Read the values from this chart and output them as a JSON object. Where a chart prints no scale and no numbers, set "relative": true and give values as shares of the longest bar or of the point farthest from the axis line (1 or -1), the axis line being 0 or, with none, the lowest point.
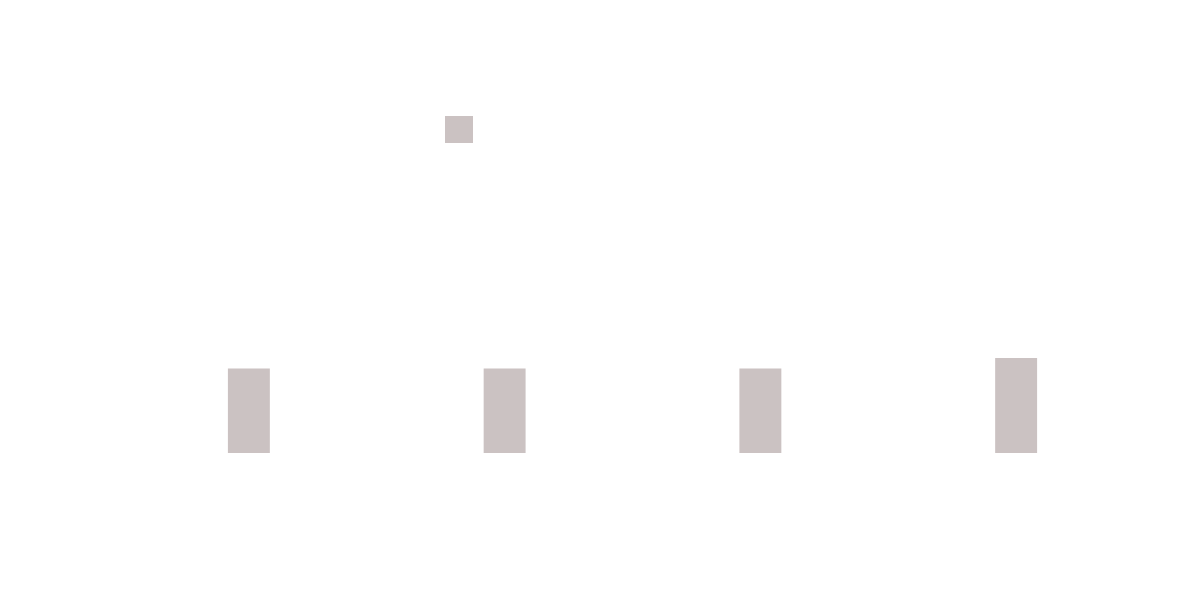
{
  "chart_data": {
    "type": "bar",
    "categories": [
      null,
      null,
      null,
      null
    ],
    "series": [
      {
        "color": "#cbc2c2",
        "values": [
          0.89,
          0.89,
          0.89,
          1
        ]
      }
    ],
    "relative": true
  }
}
